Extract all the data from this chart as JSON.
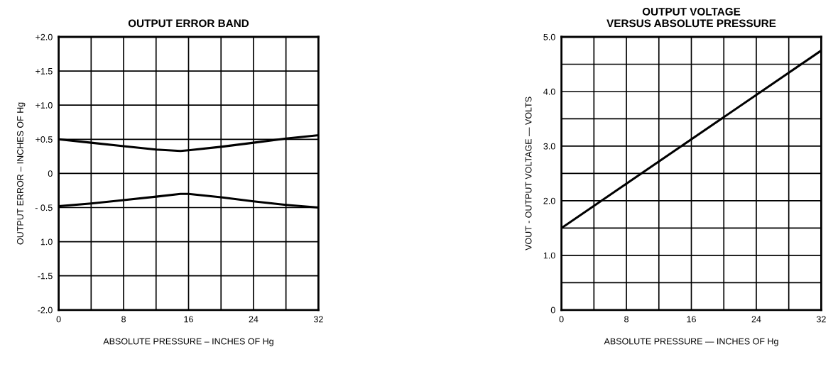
{
  "chart_data": [
    {
      "type": "line",
      "title": "OUTPUT ERROR BAND",
      "xlabel": "ABSOLUTE PRESSURE – INCHES OF Hg",
      "ylabel": "OUTPUT ERROR – INCHES OF Hg",
      "xlim": [
        0,
        32
      ],
      "ylim": [
        -2.0,
        2.0
      ],
      "xticks": [
        0,
        {
          "value": 4,
          "label": null
        },
        8,
        {
          "value": 12,
          "label": null
        },
        16,
        {
          "value": 20,
          "label": null
        },
        24,
        {
          "value": 28,
          "label": null
        },
        32
      ],
      "yticks": [
        {
          "value": -2.0,
          "label": "-2.0"
        },
        {
          "value": -1.5,
          "label": "-1.5"
        },
        {
          "value": -1.0,
          "label": "1.0"
        },
        {
          "value": -0.5,
          "label": "- 0.5"
        },
        0,
        {
          "value": 0.5,
          "label": "+0.5"
        },
        {
          "value": 1.0,
          "label": "+1.0"
        },
        {
          "value": 1.5,
          "label": "+1.5"
        },
        {
          "value": 2.0,
          "label": "+2.0"
        }
      ],
      "grid": true,
      "series": [
        {
          "color": "#000000",
          "x": [
            0,
            4,
            8,
            12,
            15,
            16,
            20,
            24,
            28,
            32
          ],
          "values": [
            0.5,
            0.45,
            0.4,
            0.35,
            0.33,
            0.34,
            0.39,
            0.45,
            0.51,
            0.56
          ]
        },
        {
          "color": "#000000",
          "x": [
            0,
            4,
            8,
            12,
            15,
            16,
            20,
            24,
            28,
            32
          ],
          "values": [
            -0.48,
            -0.44,
            -0.39,
            -0.34,
            -0.3,
            -0.3,
            -0.35,
            -0.41,
            -0.46,
            -0.5
          ]
        }
      ]
    },
    {
      "type": "line",
      "title": "OUTPUT VOLTAGE\nVERSUS ABSOLUTE PRESSURE",
      "xlabel": "ABSOLUTE PRESSURE — INCHES OF Hg",
      "ylabel": "VOUT - OUTPUT VOLTAGE — VOLTS",
      "xlim": [
        0,
        32
      ],
      "ylim": [
        0,
        5.0
      ],
      "xticks": [
        0,
        {
          "value": 4,
          "label": null
        },
        8,
        {
          "value": 12,
          "label": null
        },
        16,
        {
          "value": 20,
          "label": null
        },
        24,
        {
          "value": 28,
          "label": null
        },
        32
      ],
      "yticks": [
        0,
        {
          "value": 0.5,
          "label": null
        },
        {
          "value": 1.0,
          "label": "1.0"
        },
        {
          "value": 1.5,
          "label": null
        },
        {
          "value": 2.0,
          "label": "2.0"
        },
        {
          "value": 2.5,
          "label": null
        },
        {
          "value": 3.0,
          "label": "3.0"
        },
        {
          "value": 3.5,
          "label": null
        },
        {
          "value": 4.0,
          "label": "4.0"
        },
        {
          "value": 4.5,
          "label": null
        },
        {
          "value": 5.0,
          "label": "5.0"
        }
      ],
      "grid": true,
      "series": [
        {
          "color": "#000000",
          "x": [
            0,
            32
          ],
          "values": [
            1.5,
            4.75
          ]
        }
      ]
    }
  ]
}
